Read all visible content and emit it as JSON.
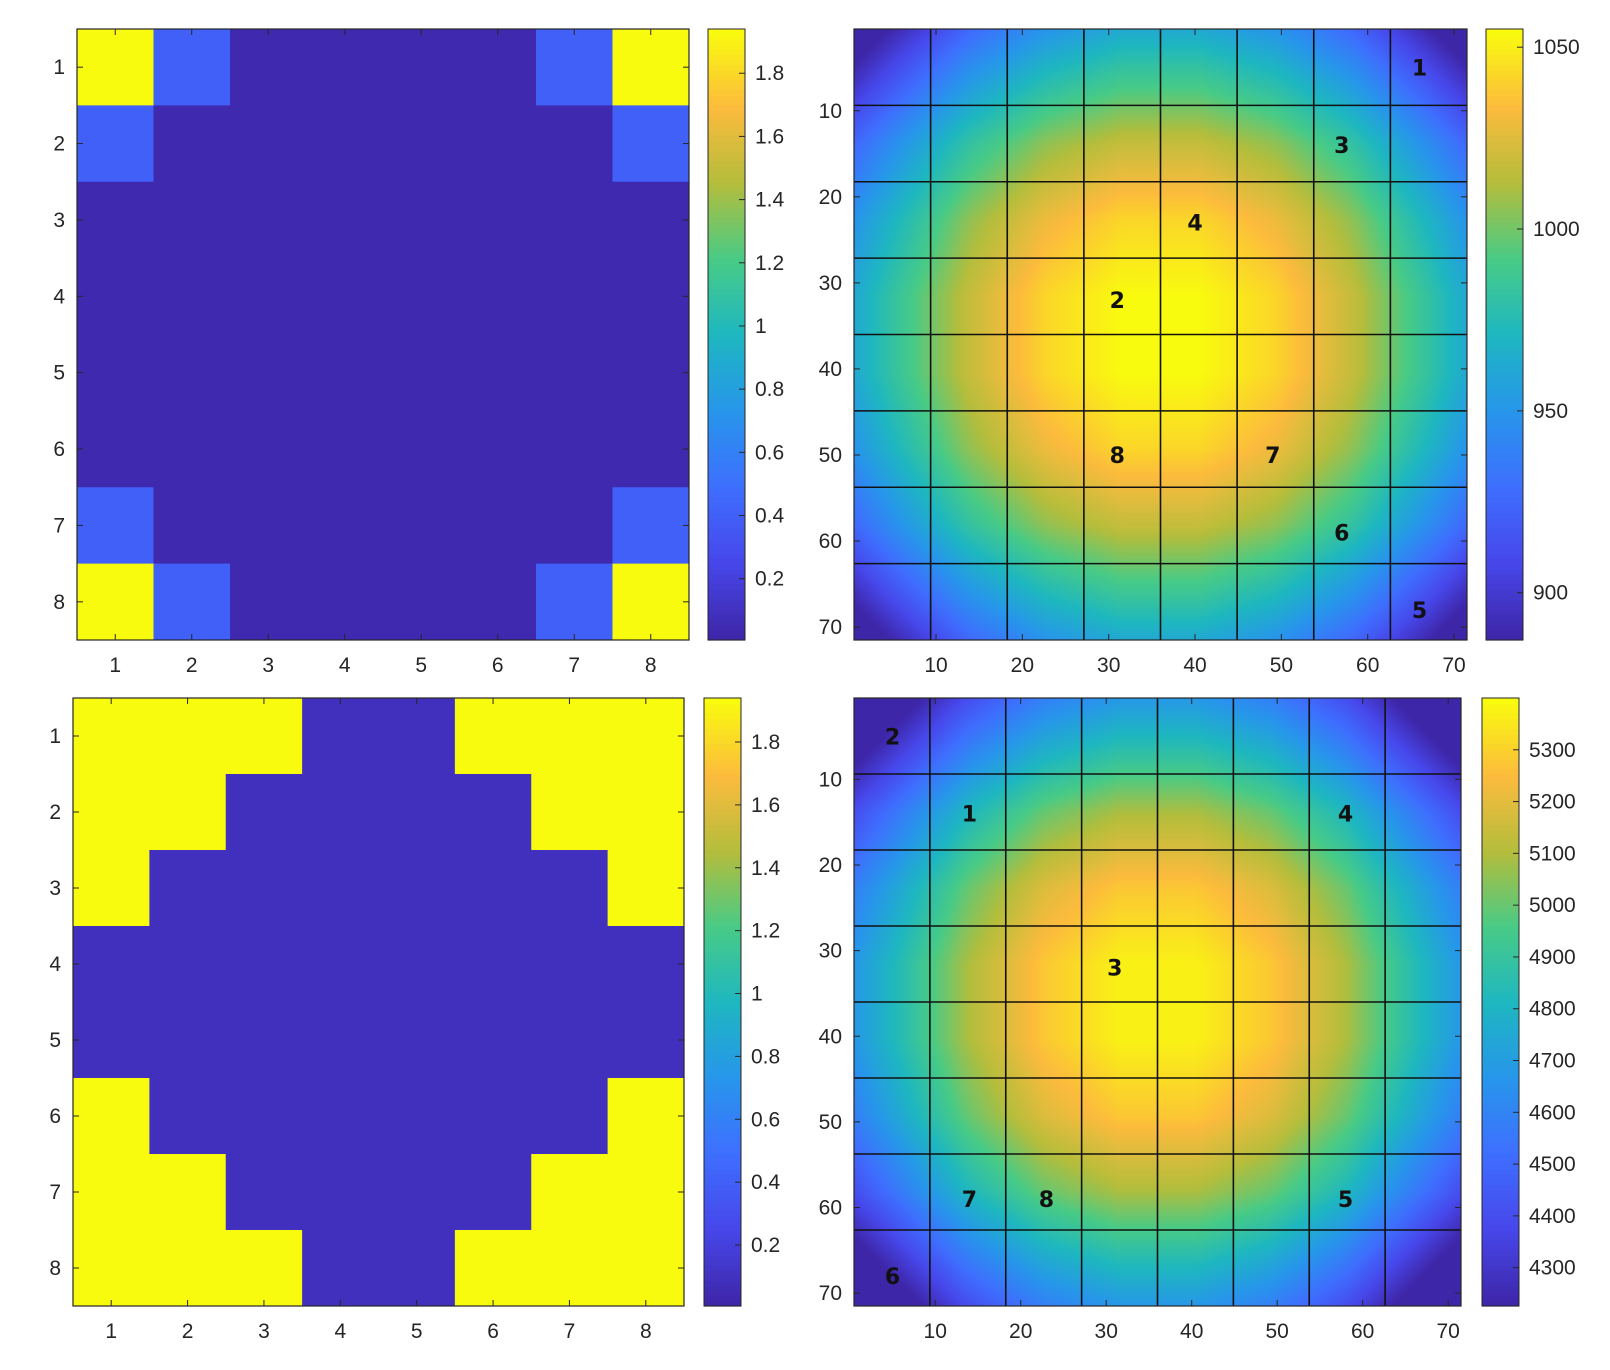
{
  "colormap": "parula",
  "colormap_stops": [
    "#3e26a8",
    "#4747eb",
    "#3e6ffe",
    "#2796eb",
    "#1eb7c0",
    "#48cb86",
    "#b4bd3c",
    "#fcbb3d",
    "#f9fb0e"
  ],
  "chart_data": [
    {
      "type": "heatmap",
      "position": "top-left",
      "x": [
        1,
        2,
        3,
        4,
        5,
        6,
        7,
        8
      ],
      "y": [
        1,
        2,
        3,
        4,
        5,
        6,
        7,
        8
      ],
      "xticks": [
        1,
        2,
        3,
        4,
        5,
        6,
        7,
        8
      ],
      "yticks": [
        1,
        2,
        3,
        4,
        5,
        6,
        7,
        8
      ],
      "xlim": [
        0.5,
        8.5
      ],
      "ylim": [
        0.5,
        8.5
      ],
      "y_reversed": true,
      "clim": [
        0.006,
        1.94
      ],
      "colorbar_ticks": [
        0.2,
        0.4,
        0.6,
        0.8,
        1,
        1.2,
        1.4,
        1.6,
        1.8
      ],
      "values": [
        [
          1.94,
          0.4,
          0.03,
          0.03,
          0.03,
          0.03,
          0.4,
          1.94
        ],
        [
          0.4,
          0.03,
          0.03,
          0.03,
          0.03,
          0.03,
          0.03,
          0.4
        ],
        [
          0.03,
          0.03,
          0.03,
          0.03,
          0.03,
          0.03,
          0.03,
          0.03
        ],
        [
          0.03,
          0.03,
          0.03,
          0.03,
          0.03,
          0.03,
          0.03,
          0.03
        ],
        [
          0.03,
          0.03,
          0.03,
          0.03,
          0.03,
          0.03,
          0.03,
          0.03
        ],
        [
          0.03,
          0.03,
          0.03,
          0.03,
          0.03,
          0.03,
          0.03,
          0.03
        ],
        [
          0.4,
          0.03,
          0.03,
          0.03,
          0.03,
          0.03,
          0.03,
          0.4
        ],
        [
          1.94,
          0.4,
          0.03,
          0.03,
          0.03,
          0.03,
          0.4,
          1.94
        ]
      ]
    },
    {
      "type": "heatmap",
      "position": "top-right",
      "xticks": [
        10,
        20,
        30,
        40,
        50,
        60,
        70
      ],
      "yticks": [
        10,
        20,
        30,
        40,
        50,
        60,
        70
      ],
      "xlim": [
        0.5,
        71.5
      ],
      "ylim": [
        0.5,
        71.5
      ],
      "y_reversed": true,
      "clim": [
        887,
        1055
      ],
      "colorbar_ticks": [
        900,
        950,
        1000,
        1050
      ],
      "block_grid": 8,
      "block_center_values": [
        [
          908,
          945,
          969,
          982,
          982,
          969,
          945,
          908
        ],
        [
          945,
          982,
          1006,
          1018,
          1018,
          1006,
          982,
          945
        ],
        [
          969,
          1006,
          1030,
          1043,
          1043,
          1030,
          1006,
          969
        ],
        [
          982,
          1018,
          1043,
          1055,
          1055,
          1043,
          1018,
          982
        ],
        [
          982,
          1018,
          1043,
          1055,
          1055,
          1043,
          1018,
          982
        ],
        [
          969,
          1006,
          1030,
          1043,
          1043,
          1030,
          1006,
          969
        ],
        [
          945,
          982,
          1006,
          1018,
          1018,
          1006,
          982,
          945
        ],
        [
          908,
          945,
          969,
          982,
          982,
          969,
          945,
          908
        ]
      ],
      "annotations": [
        {
          "text": "1",
          "x": 66,
          "y": 5
        },
        {
          "text": "3",
          "x": 57,
          "y": 14
        },
        {
          "text": "4",
          "x": 40,
          "y": 23
        },
        {
          "text": "2",
          "x": 31,
          "y": 32
        },
        {
          "text": "8",
          "x": 31,
          "y": 50
        },
        {
          "text": "7",
          "x": 49,
          "y": 50
        },
        {
          "text": "6",
          "x": 57,
          "y": 59
        },
        {
          "text": "5",
          "x": 66,
          "y": 68
        }
      ]
    },
    {
      "type": "heatmap",
      "position": "bottom-left",
      "x": [
        1,
        2,
        3,
        4,
        5,
        6,
        7,
        8
      ],
      "y": [
        1,
        2,
        3,
        4,
        5,
        6,
        7,
        8
      ],
      "xticks": [
        1,
        2,
        3,
        4,
        5,
        6,
        7,
        8
      ],
      "yticks": [
        1,
        2,
        3,
        4,
        5,
        6,
        7,
        8
      ],
      "xlim": [
        0.5,
        8.5
      ],
      "ylim": [
        0.5,
        8.5
      ],
      "y_reversed": true,
      "clim": [
        0.006,
        1.94
      ],
      "colorbar_ticks": [
        0.2,
        0.4,
        0.6,
        0.8,
        1,
        1.2,
        1.4,
        1.6,
        1.8
      ],
      "values": [
        [
          1.94,
          1.94,
          1.94,
          0.08,
          0.08,
          1.94,
          1.94,
          1.94
        ],
        [
          1.94,
          1.94,
          0.08,
          0.08,
          0.08,
          0.08,
          1.94,
          1.94
        ],
        [
          1.94,
          0.08,
          0.08,
          0.08,
          0.08,
          0.08,
          0.08,
          1.94
        ],
        [
          0.08,
          0.08,
          0.08,
          0.08,
          0.08,
          0.08,
          0.08,
          0.08
        ],
        [
          0.08,
          0.08,
          0.08,
          0.08,
          0.08,
          0.08,
          0.08,
          0.08
        ],
        [
          1.94,
          0.08,
          0.08,
          0.08,
          0.08,
          0.08,
          0.08,
          1.94
        ],
        [
          1.94,
          1.94,
          0.08,
          0.08,
          0.08,
          0.08,
          1.94,
          1.94
        ],
        [
          1.94,
          1.94,
          1.94,
          0.08,
          0.08,
          1.94,
          1.94,
          1.94
        ]
      ]
    },
    {
      "type": "heatmap",
      "position": "bottom-right",
      "xticks": [
        10,
        20,
        30,
        40,
        50,
        60,
        70
      ],
      "yticks": [
        10,
        20,
        30,
        40,
        50,
        60,
        70
      ],
      "xlim": [
        0.5,
        71.5
      ],
      "ylim": [
        0.5,
        71.5
      ],
      "y_reversed": true,
      "clim": [
        4226,
        5400
      ],
      "colorbar_ticks": [
        4300,
        4400,
        4500,
        4600,
        4700,
        4800,
        4900,
        5000,
        5100,
        5200,
        5300
      ],
      "block_grid": 8,
      "block_center_values": [
        [
          4251,
          4532,
          4720,
          4814,
          4814,
          4720,
          4532,
          4251
        ],
        [
          4532,
          4814,
          5001,
          5095,
          5095,
          5001,
          4814,
          4532
        ],
        [
          4720,
          5001,
          5189,
          5283,
          5283,
          5189,
          5001,
          4720
        ],
        [
          4814,
          5095,
          5283,
          5377,
          5377,
          5283,
          5095,
          4814
        ],
        [
          4814,
          5095,
          5283,
          5377,
          5377,
          5283,
          5095,
          4814
        ],
        [
          4720,
          5001,
          5189,
          5283,
          5283,
          5189,
          5001,
          4720
        ],
        [
          4532,
          4814,
          5001,
          5095,
          5095,
          5001,
          4814,
          4532
        ],
        [
          4251,
          4532,
          4720,
          4814,
          4814,
          4720,
          4532,
          4251
        ]
      ],
      "annotations": [
        {
          "text": "2",
          "x": 5,
          "y": 5
        },
        {
          "text": "1",
          "x": 14,
          "y": 14
        },
        {
          "text": "4",
          "x": 58,
          "y": 14
        },
        {
          "text": "3",
          "x": 31,
          "y": 32
        },
        {
          "text": "7",
          "x": 14,
          "y": 59
        },
        {
          "text": "8",
          "x": 23,
          "y": 59
        },
        {
          "text": "5",
          "x": 58,
          "y": 59
        },
        {
          "text": "6",
          "x": 5,
          "y": 68
        }
      ]
    }
  ]
}
